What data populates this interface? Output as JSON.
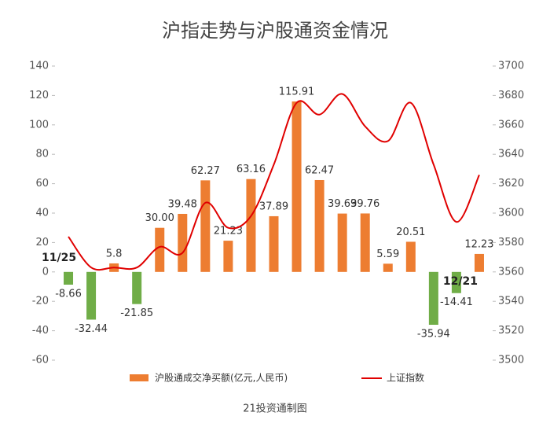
{
  "chart_data": {
    "type": "bar_line",
    "title": "沪指走势与沪股通资金情况",
    "footer": "21投资通制图",
    "categories": [
      "11/25",
      null,
      null,
      null,
      null,
      null,
      null,
      null,
      null,
      null,
      null,
      null,
      null,
      null,
      null,
      null,
      null,
      null,
      "12/21"
    ],
    "series": [
      {
        "name": "沪股通成交净买额(亿元,人民币)",
        "type": "bar",
        "color": "#ED7D31",
        "negative_color": "#70AD47",
        "values": [
          -8.66,
          -32.44,
          5.8,
          -21.85,
          30,
          39.48,
          62.27,
          21.23,
          63.16,
          37.89,
          115.91,
          62.47,
          39.69,
          39.76,
          5.59,
          20.51,
          -35.94,
          -14.41,
          12.23
        ],
        "value_labels": [
          "-8.66",
          "-32.44",
          "5.8",
          "-21.85",
          "30.00",
          "39.48",
          "62.27",
          "21.23",
          "63.16",
          "37.89",
          "115.91",
          "62.47",
          "39.69",
          "39.76",
          "5.59",
          "20.51",
          "-35.94",
          "-14.41",
          "12.23"
        ]
      },
      {
        "name": "上证指数",
        "type": "line",
        "axis": "y2",
        "color": "#E00000",
        "values": [
          3584,
          3563,
          3563,
          3563,
          3577,
          3573,
          3607,
          3590,
          3598,
          3633,
          3675,
          3667,
          3681,
          3659,
          3649,
          3675,
          3633,
          3594,
          3626
        ]
      }
    ],
    "ylim": [
      -60,
      140
    ],
    "yticks": [
      -60,
      -40,
      -20,
      0,
      20,
      40,
      60,
      80,
      100,
      120,
      140
    ],
    "y2lim": [
      3500,
      3700
    ],
    "y2ticks": [
      3500,
      3520,
      3540,
      3560,
      3580,
      3600,
      3620,
      3640,
      3660,
      3680,
      3700
    ],
    "grid": false
  }
}
